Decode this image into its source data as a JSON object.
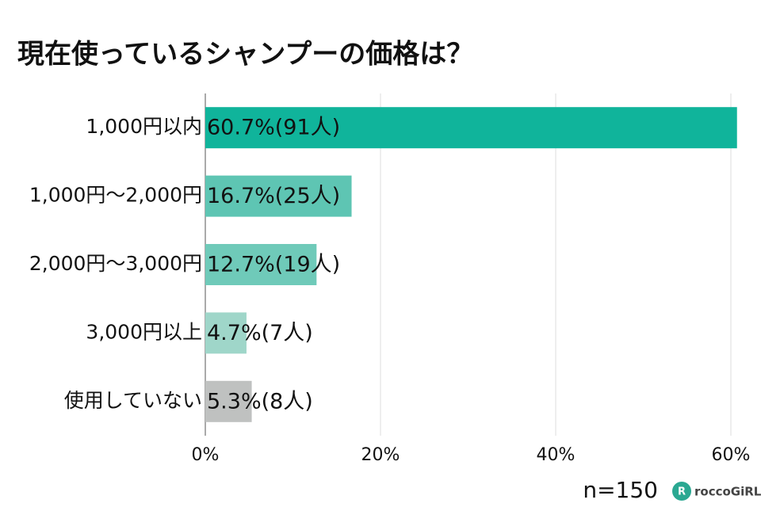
{
  "chart_data": {
    "type": "hbar",
    "title": "現在使っているシャンプーの価格は？",
    "categories": [
      "1,000円以内",
      "1,000円～2,000円",
      "2,000円～3,000円",
      "3,000円以上",
      "使用していない"
    ],
    "values": [
      60.7,
      16.7,
      12.7,
      4.7,
      5.3
    ],
    "value_labels": [
      "60.7%(91人)",
      "16.7%(25人)",
      "12.7%(19人)",
      "4.7%(7人)",
      "5.3%(8人)"
    ],
    "colors": [
      "#10b49b",
      "#5ec5b3",
      "#6fcab9",
      "#9fd6c9",
      "#bfc1c0"
    ],
    "xlim": [
      0,
      60
    ],
    "xticks": [
      {
        "value": 0,
        "label": "0%"
      },
      {
        "value": 20,
        "label": "20%"
      },
      {
        "value": 40,
        "label": "40%"
      },
      {
        "value": 60,
        "label": "60%"
      }
    ],
    "grid": true,
    "annotation": "n=150",
    "logo": "roccoGiRL"
  }
}
